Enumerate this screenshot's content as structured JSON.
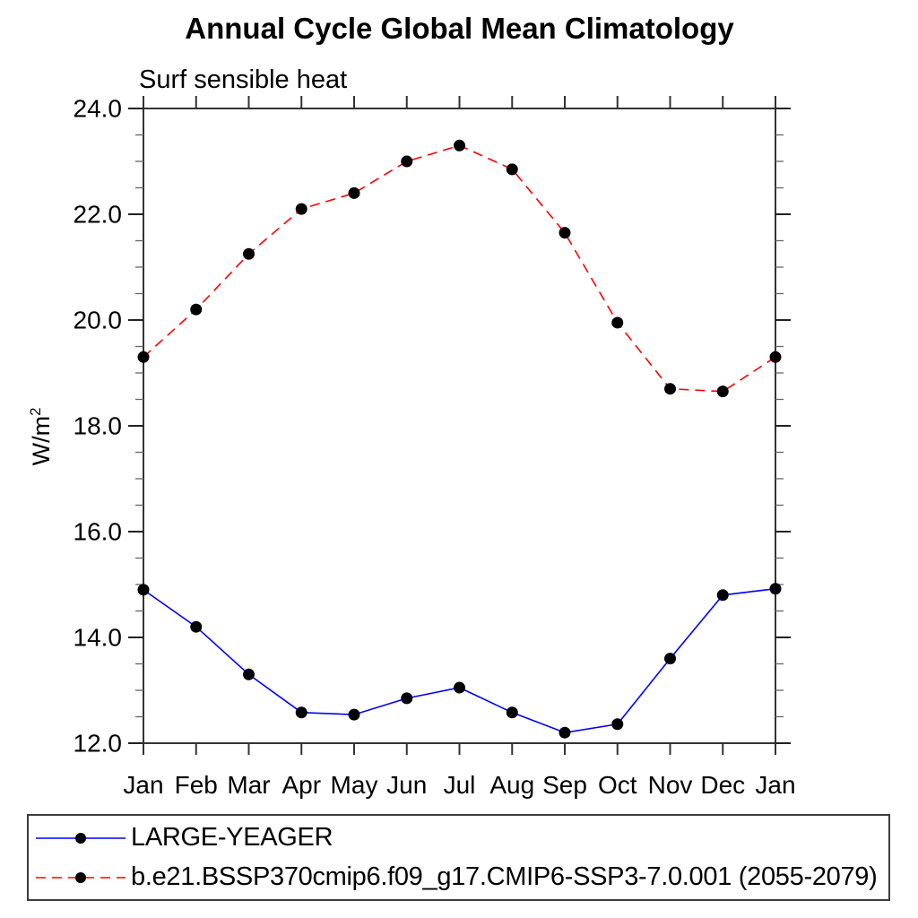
{
  "chart": {
    "title": "Annual Cycle Global Mean Climatology",
    "subtitle": "Surf sensible heat",
    "ylabel_base": "W/m",
    "ylabel_exponent": "2"
  },
  "chart_data": {
    "type": "line",
    "title": "Annual Cycle Global Mean Climatology",
    "subtitle": "Surf sensible heat",
    "xlabel": "",
    "ylabel": "W/m^2",
    "categories": [
      "Jan",
      "Feb",
      "Mar",
      "Apr",
      "May",
      "Jun",
      "Jul",
      "Aug",
      "Sep",
      "Oct",
      "Nov",
      "Dec",
      "Jan"
    ],
    "ylim": [
      12.0,
      24.0
    ],
    "ytick_major_interval": 2.0,
    "ytick_minor_interval": 0.5,
    "ytick_labels": [
      "12.0",
      "14.0",
      "16.0",
      "18.0",
      "20.0",
      "22.0",
      "24.0"
    ],
    "grid": false,
    "legend_position": "bottom",
    "marker_color": "#000000",
    "series": [
      {
        "name": "LARGE-YEAGER",
        "color": "#0000ff",
        "style": "solid",
        "marker": "filled-circle",
        "values": [
          14.9,
          14.2,
          13.3,
          12.58,
          12.54,
          12.85,
          13.05,
          12.58,
          12.2,
          12.36,
          13.6,
          14.8,
          14.92
        ]
      },
      {
        "name": "b.e21.BSSP370cmip6.f09_g17.CMIP6-SSP3-7.0.001 (2055-2079)",
        "color": "#ff0000",
        "style": "dashed",
        "marker": "filled-circle",
        "values": [
          19.3,
          20.2,
          21.25,
          22.1,
          22.4,
          23.0,
          23.3,
          22.85,
          21.65,
          19.95,
          18.7,
          18.65,
          19.3
        ]
      }
    ]
  }
}
